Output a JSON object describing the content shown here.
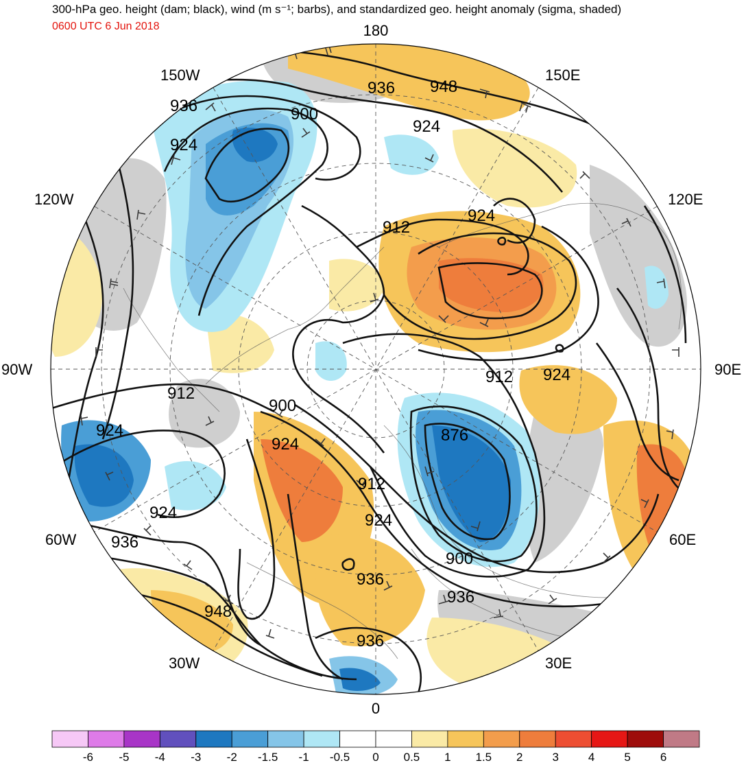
{
  "title": "300-hPa geo. height (dam; black), wind (m s⁻¹; barbs), and standardized geo. height anomaly (sigma, shaded)",
  "valid_time": "0600 UTC 6 Jun 2018",
  "longitude_labels": {
    "lon_180": "180",
    "lon_150e": "150E",
    "lon_120e": "120E",
    "lon_90e": "90E",
    "lon_60e": "60E",
    "lon_30e": "30E",
    "lon_0": "0",
    "lon_30w": "30W",
    "lon_60w": "60W",
    "lon_90w": "90W",
    "lon_120w": "120W",
    "lon_150w": "150W"
  },
  "contour_labels": [
    "936",
    "948",
    "936",
    "924",
    "924",
    "924",
    "900",
    "912",
    "924",
    "912",
    "924",
    "900",
    "924",
    "876",
    "912",
    "924",
    "912",
    "924",
    "936",
    "900",
    "936",
    "948",
    "936",
    "936"
  ],
  "colorbar": {
    "labels": [
      "-6",
      "-5",
      "-4",
      "-3",
      "-2",
      "-1.5",
      "-1",
      "-0.5",
      "0",
      "0.5",
      "1",
      "1.5",
      "2",
      "3",
      "4",
      "5",
      "6"
    ],
    "colors": [
      "#f6c8f6",
      "#de7be8",
      "#a835c7",
      "#6150bd",
      "#1e78c0",
      "#4a9ed6",
      "#85c5e8",
      "#afe7f5",
      "#ffffff",
      "#ffffff",
      "#faeaa6",
      "#f6c55a",
      "#f39d4c",
      "#ee7d3c",
      "#ed4e32",
      "#e61715",
      "#9e0d0b",
      "#c07a86"
    ]
  },
  "shading_colors": {
    "neutral_gray": "#cfcfcf",
    "ocean": "#ffffff",
    "pos_half": "#faeaa6",
    "pos_1": "#f6c55a",
    "pos_15": "#f39d4c",
    "pos_2": "#ee7d3c",
    "neg_half": "#afe7f5",
    "neg_1": "#85c5e8",
    "neg_15": "#4a9ed6",
    "neg_2": "#1e78c0"
  }
}
